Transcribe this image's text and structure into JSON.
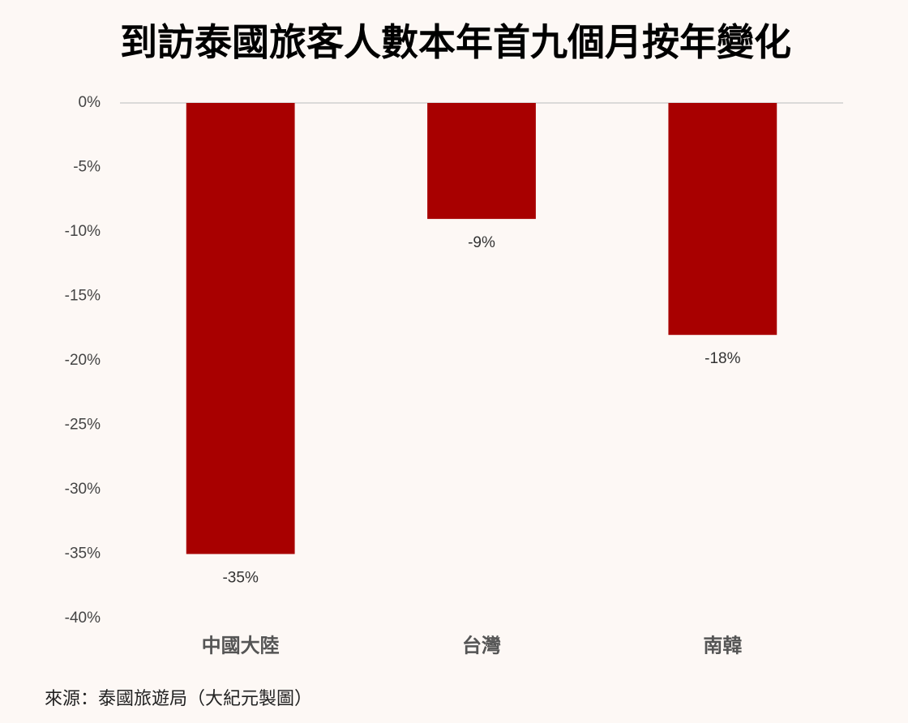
{
  "chart_data": {
    "type": "bar",
    "title": "到訪泰國旅客人數本年首九個月按年變化",
    "categories": [
      "中國大陸",
      "台灣",
      "南韓"
    ],
    "values": [
      -35,
      -9,
      -18
    ],
    "value_labels": [
      "-35%",
      "-9%",
      "-18%"
    ],
    "color": "#a80000",
    "ylim": [
      -40,
      0
    ],
    "yticks": [
      {
        "value": 0,
        "label": "0%"
      },
      {
        "value": -5,
        "label": "-5%"
      },
      {
        "value": -10,
        "label": "-10%"
      },
      {
        "value": -15,
        "label": "-15%"
      },
      {
        "value": -20,
        "label": "-20%"
      },
      {
        "value": -25,
        "label": "-25%"
      },
      {
        "value": -30,
        "label": "-30%"
      },
      {
        "value": -35,
        "label": "-35%"
      },
      {
        "value": -40,
        "label": "-40%"
      }
    ],
    "grid": false,
    "source": "來源：泰國旅遊局（大紀元製圖）"
  }
}
